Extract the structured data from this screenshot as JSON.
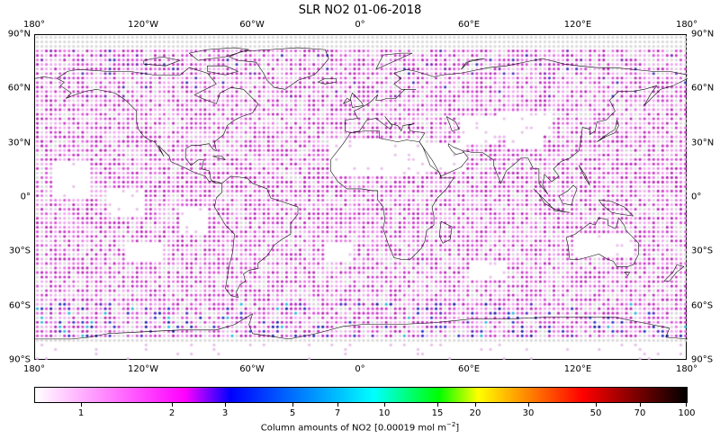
{
  "title": "SLR NO2 01-06-2018",
  "chart_data": {
    "type": "heatmap",
    "title": "SLR NO2 01-06-2018",
    "projection": "PlateCarree",
    "grid_spacing_deg": 2.5,
    "x_ticks": [
      "180°",
      "120°W",
      "60°W",
      "0°",
      "60°E",
      "120°E",
      "180°"
    ],
    "x_tick_values": [
      -180,
      -120,
      -60,
      0,
      60,
      120,
      180
    ],
    "y_ticks": [
      "90°N",
      "60°N",
      "30°N",
      "0°",
      "30°S",
      "60°S",
      "90°S"
    ],
    "y_tick_values": [
      90,
      60,
      30,
      0,
      -30,
      -60,
      -90
    ],
    "colorbar": {
      "label": "Column amounts of NO2 [0.00019 mol m",
      "label_exp": "−2",
      "label_end": "]",
      "scale": "log",
      "range": [
        0.6,
        100
      ],
      "ticks": [
        "1",
        "2",
        "3",
        "5",
        "7",
        "10",
        "15",
        "20",
        "30",
        "50",
        "70",
        "100"
      ],
      "tick_values": [
        1,
        2,
        3,
        5,
        7,
        10,
        15,
        20,
        30,
        50,
        70,
        100
      ],
      "colormap": [
        "#ffffff",
        "#ff00ff",
        "#0000ff",
        "#00ffff",
        "#00ff00",
        "#ffff00",
        "#ff0000",
        "#000000"
      ]
    },
    "summary": "Global dot field mostly 1-2.5 units (pink/magenta) over oceans and high latitudes; missing data (white) over Sahara, Arabia, central Asia, Australia, Antarctica interior; grey dots mark no-retrieval cells; scattered higher values (blue/cyan 3-7) around Southern Ocean 60-75°S and Arctic."
  },
  "axes": {
    "top": [
      "180°",
      "120°W",
      "60°W",
      "0°",
      "60°E",
      "120°E",
      "180°"
    ],
    "bottom": [
      "180°",
      "120°W",
      "60°W",
      "0°",
      "60°E",
      "120°E",
      "180°"
    ],
    "left": [
      "90°N",
      "60°N",
      "30°N",
      "0°",
      "30°S",
      "60°S",
      "90°S"
    ],
    "right": [
      "90°N",
      "60°N",
      "30°N",
      "0°",
      "30°S",
      "60°S",
      "90°S"
    ]
  },
  "colorbar": {
    "ticks": [
      "1",
      "2",
      "3",
      "5",
      "7",
      "10",
      "15",
      "20",
      "30",
      "50",
      "70",
      "100"
    ],
    "label": "Column amounts of NO2 [0.00019 mol m",
    "label_exp": "−2",
    "label_end": "]"
  }
}
